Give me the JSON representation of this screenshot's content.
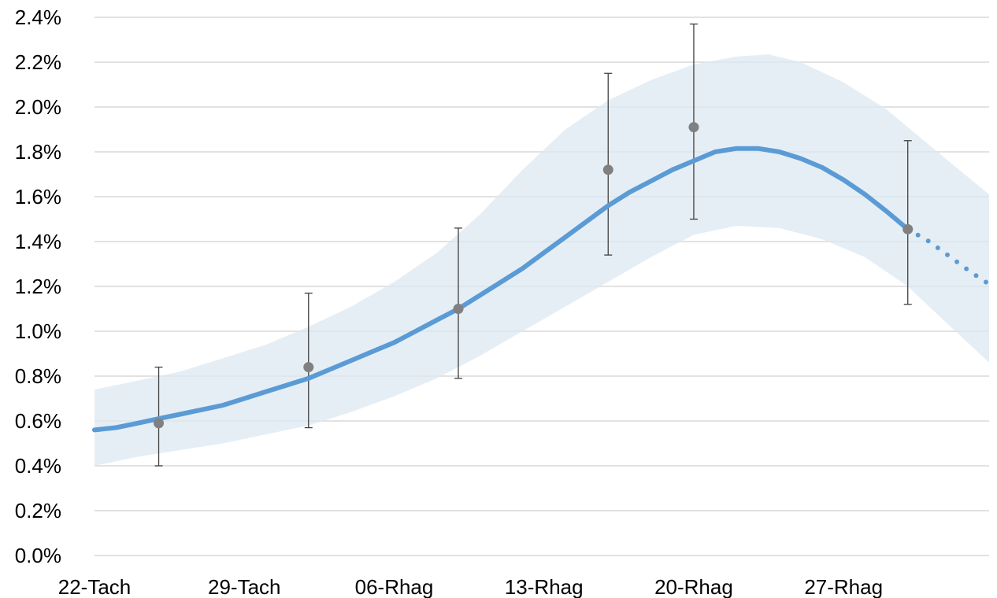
{
  "chart_data": {
    "type": "line",
    "y_tick_labels": [
      "0.0%",
      "0.2%",
      "0.4%",
      "0.6%",
      "0.8%",
      "1.0%",
      "1.2%",
      "1.4%",
      "1.6%",
      "1.8%",
      "2.0%",
      "2.2%",
      "2.4%"
    ],
    "ylim": [
      0,
      2.4
    ],
    "x_tick_labels": [
      {
        "label": "22-Tach",
        "day": 0
      },
      {
        "label": "29-Tach",
        "day": 7
      },
      {
        "label": "06-Rhag",
        "day": 14
      },
      {
        "label": "13-Rhag",
        "day": 21
      },
      {
        "label": "20-Rhag",
        "day": 28
      },
      {
        "label": "27-Rhag",
        "day": 35
      }
    ],
    "grid": true,
    "colors": {
      "line": "#5b9bd5",
      "band": "#dde8f2",
      "points": "#808080",
      "errorbars": "#404040",
      "grid": "#d9d9d9"
    },
    "series": [
      {
        "role": "modelled estimate (solid)",
        "points": [
          {
            "day": 0,
            "y": 0.56
          },
          {
            "day": 1,
            "y": 0.57
          },
          {
            "day": 2,
            "y": 0.59
          },
          {
            "day": 3,
            "y": 0.61
          },
          {
            "day": 4,
            "y": 0.63
          },
          {
            "day": 5,
            "y": 0.65
          },
          {
            "day": 6,
            "y": 0.67
          },
          {
            "day": 7,
            "y": 0.7
          },
          {
            "day": 8,
            "y": 0.73
          },
          {
            "day": 9,
            "y": 0.76
          },
          {
            "day": 10,
            "y": 0.79
          },
          {
            "day": 11,
            "y": 0.83
          },
          {
            "day": 12,
            "y": 0.87
          },
          {
            "day": 13,
            "y": 0.91
          },
          {
            "day": 14,
            "y": 0.95
          },
          {
            "day": 15,
            "y": 1.0
          },
          {
            "day": 16,
            "y": 1.05
          },
          {
            "day": 17,
            "y": 1.1
          },
          {
            "day": 18,
            "y": 1.16
          },
          {
            "day": 19,
            "y": 1.22
          },
          {
            "day": 20,
            "y": 1.28
          },
          {
            "day": 21,
            "y": 1.35
          },
          {
            "day": 22,
            "y": 1.42
          },
          {
            "day": 23,
            "y": 1.49
          },
          {
            "day": 24,
            "y": 1.56
          },
          {
            "day": 25,
            "y": 1.62
          },
          {
            "day": 26,
            "y": 1.67
          },
          {
            "day": 27,
            "y": 1.72
          },
          {
            "day": 28,
            "y": 1.76
          },
          {
            "day": 29,
            "y": 1.8
          },
          {
            "day": 30,
            "y": 1.815
          },
          {
            "day": 31,
            "y": 1.815
          },
          {
            "day": 32,
            "y": 1.8
          },
          {
            "day": 33,
            "y": 1.77
          },
          {
            "day": 34,
            "y": 1.73
          },
          {
            "day": 35,
            "y": 1.675
          },
          {
            "day": 36,
            "y": 1.61
          },
          {
            "day": 37,
            "y": 1.535
          },
          {
            "day": 38,
            "y": 1.455
          }
        ]
      },
      {
        "role": "projection (dotted)",
        "points": [
          {
            "day": 38,
            "y": 1.455
          },
          {
            "day": 39,
            "y": 1.4
          },
          {
            "day": 40,
            "y": 1.33
          },
          {
            "day": 41,
            "y": 1.26
          },
          {
            "day": 41.8,
            "y": 1.21
          }
        ]
      }
    ],
    "credible_interval": {
      "lower": [
        {
          "day": 0,
          "y": 0.4
        },
        {
          "day": 2,
          "y": 0.44
        },
        {
          "day": 4,
          "y": 0.47
        },
        {
          "day": 6,
          "y": 0.5
        },
        {
          "day": 8,
          "y": 0.54
        },
        {
          "day": 10,
          "y": 0.58
        },
        {
          "day": 12,
          "y": 0.64
        },
        {
          "day": 14,
          "y": 0.71
        },
        {
          "day": 16,
          "y": 0.79
        },
        {
          "day": 18,
          "y": 0.89
        },
        {
          "day": 20,
          "y": 1.0
        },
        {
          "day": 22,
          "y": 1.11
        },
        {
          "day": 24,
          "y": 1.22
        },
        {
          "day": 26,
          "y": 1.33
        },
        {
          "day": 28,
          "y": 1.43
        },
        {
          "day": 30,
          "y": 1.47
        },
        {
          "day": 32,
          "y": 1.46
        },
        {
          "day": 34,
          "y": 1.41
        },
        {
          "day": 36,
          "y": 1.33
        },
        {
          "day": 38,
          "y": 1.2
        },
        {
          "day": 40,
          "y": 1.02
        },
        {
          "day": 41.8,
          "y": 0.86
        }
      ],
      "upper": [
        {
          "day": 0,
          "y": 0.74
        },
        {
          "day": 2,
          "y": 0.78
        },
        {
          "day": 4,
          "y": 0.82
        },
        {
          "day": 6,
          "y": 0.88
        },
        {
          "day": 8,
          "y": 0.94
        },
        {
          "day": 10,
          "y": 1.02
        },
        {
          "day": 12,
          "y": 1.11
        },
        {
          "day": 14,
          "y": 1.22
        },
        {
          "day": 16,
          "y": 1.35
        },
        {
          "day": 18,
          "y": 1.52
        },
        {
          "day": 20,
          "y": 1.72
        },
        {
          "day": 22,
          "y": 1.9
        },
        {
          "day": 24,
          "y": 2.03
        },
        {
          "day": 26,
          "y": 2.12
        },
        {
          "day": 28,
          "y": 2.19
        },
        {
          "day": 30,
          "y": 2.225
        },
        {
          "day": 31.5,
          "y": 2.235
        },
        {
          "day": 33,
          "y": 2.2
        },
        {
          "day": 35,
          "y": 2.11
        },
        {
          "day": 37,
          "y": 1.99
        },
        {
          "day": 39,
          "y": 1.83
        },
        {
          "day": 41.8,
          "y": 1.61
        }
      ]
    },
    "observations": [
      {
        "day": 3,
        "y": 0.59,
        "low": 0.4,
        "high": 0.84
      },
      {
        "day": 10,
        "y": 0.84,
        "low": 0.57,
        "high": 1.17
      },
      {
        "day": 17,
        "y": 1.1,
        "low": 0.79,
        "high": 1.46
      },
      {
        "day": 24,
        "y": 1.72,
        "low": 1.34,
        "high": 2.15
      },
      {
        "day": 28,
        "y": 1.91,
        "low": 1.5,
        "high": 2.37
      },
      {
        "day": 38,
        "y": 1.455,
        "low": 1.12,
        "high": 1.85
      }
    ]
  }
}
